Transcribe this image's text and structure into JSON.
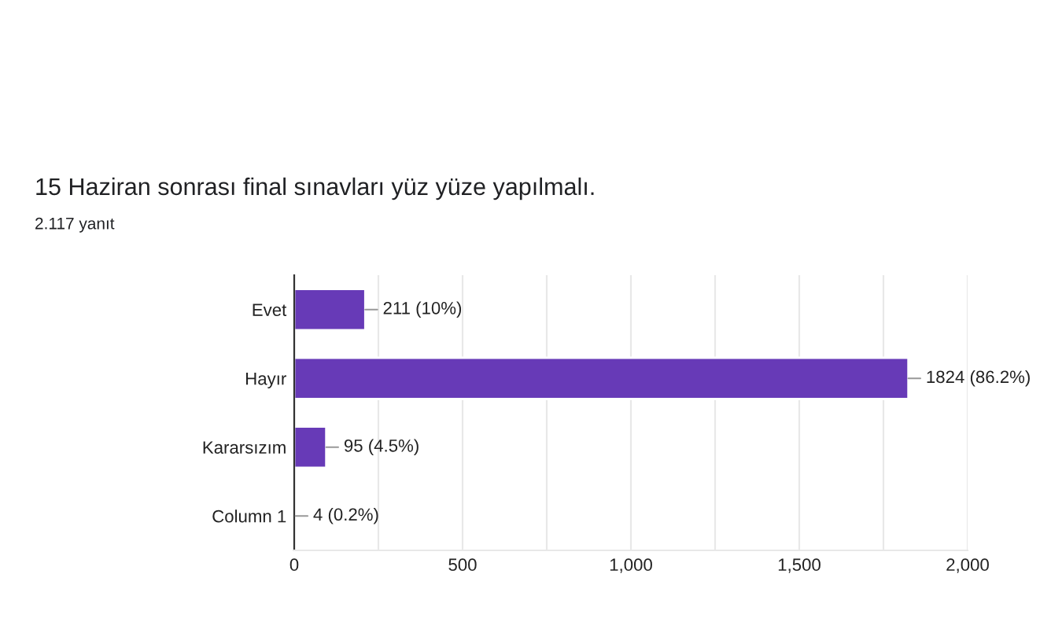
{
  "chart_data": {
    "type": "bar",
    "orientation": "horizontal",
    "title": "15 Haziran sonrası final sınavları yüz yüze yapılmalı.",
    "subtitle": "2.117 yanıt",
    "categories": [
      "Evet",
      "Hayır",
      "Kararsızım",
      "Column 1"
    ],
    "values": [
      211,
      1824,
      95,
      4
    ],
    "color": "#673ab7",
    "value_labels": [
      "211 (10%)",
      "1824 (86.2%)",
      "95 (4.5%)",
      "4 (0.2%)"
    ],
    "xlim": [
      0,
      2000
    ],
    "xticks": [
      0,
      {
        "value": 250,
        "label": null
      },
      500,
      {
        "value": 750,
        "label": null
      },
      {
        "value": 1000,
        "label": "1,000"
      },
      {
        "value": 1250,
        "label": null
      },
      {
        "value": 1500,
        "label": "1,500"
      },
      {
        "value": 1750,
        "label": null
      },
      {
        "value": 2000,
        "label": "2,000"
      }
    ],
    "grid": "x",
    "legend": false
  }
}
